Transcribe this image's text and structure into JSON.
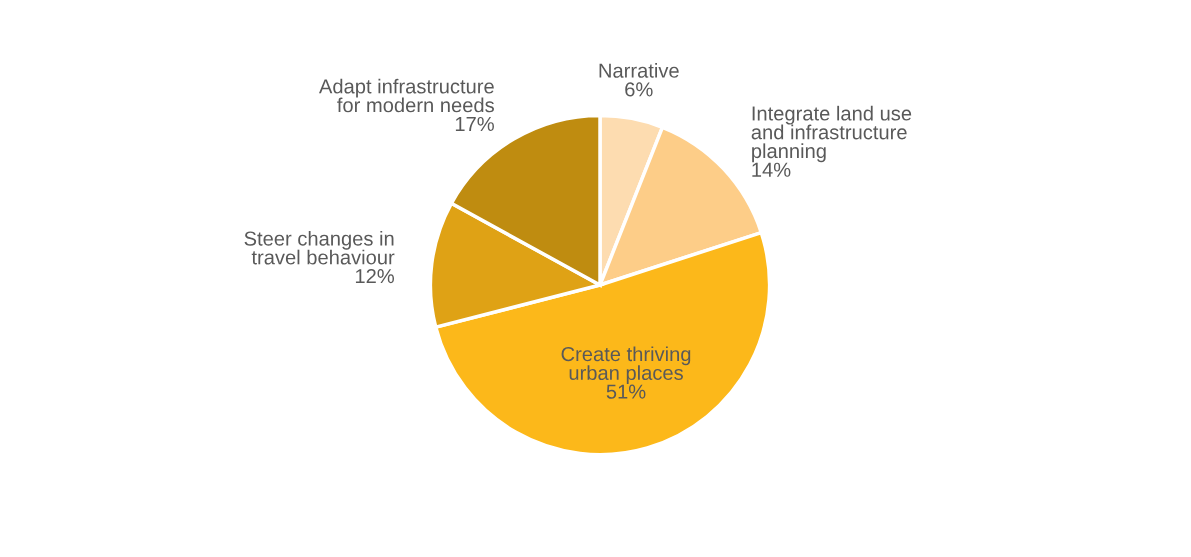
{
  "chart_data": {
    "type": "pie",
    "categories": [
      "Narrative",
      "Integrate land use\nand infrastructure\nplanning",
      "Create thriving\nurban places",
      "Steer changes in\ntravel behaviour",
      "Adapt infrastructure\nfor modern needs"
    ],
    "values": [
      6,
      14,
      51,
      12,
      17
    ],
    "value_labels": [
      "6%",
      "14%",
      "51%",
      "12%",
      "17%"
    ],
    "colors": [
      "#fddcb0",
      "#fdcd88",
      "#fcb81a",
      "#dfa215",
      "#bf8c10"
    ],
    "legend": false
  }
}
